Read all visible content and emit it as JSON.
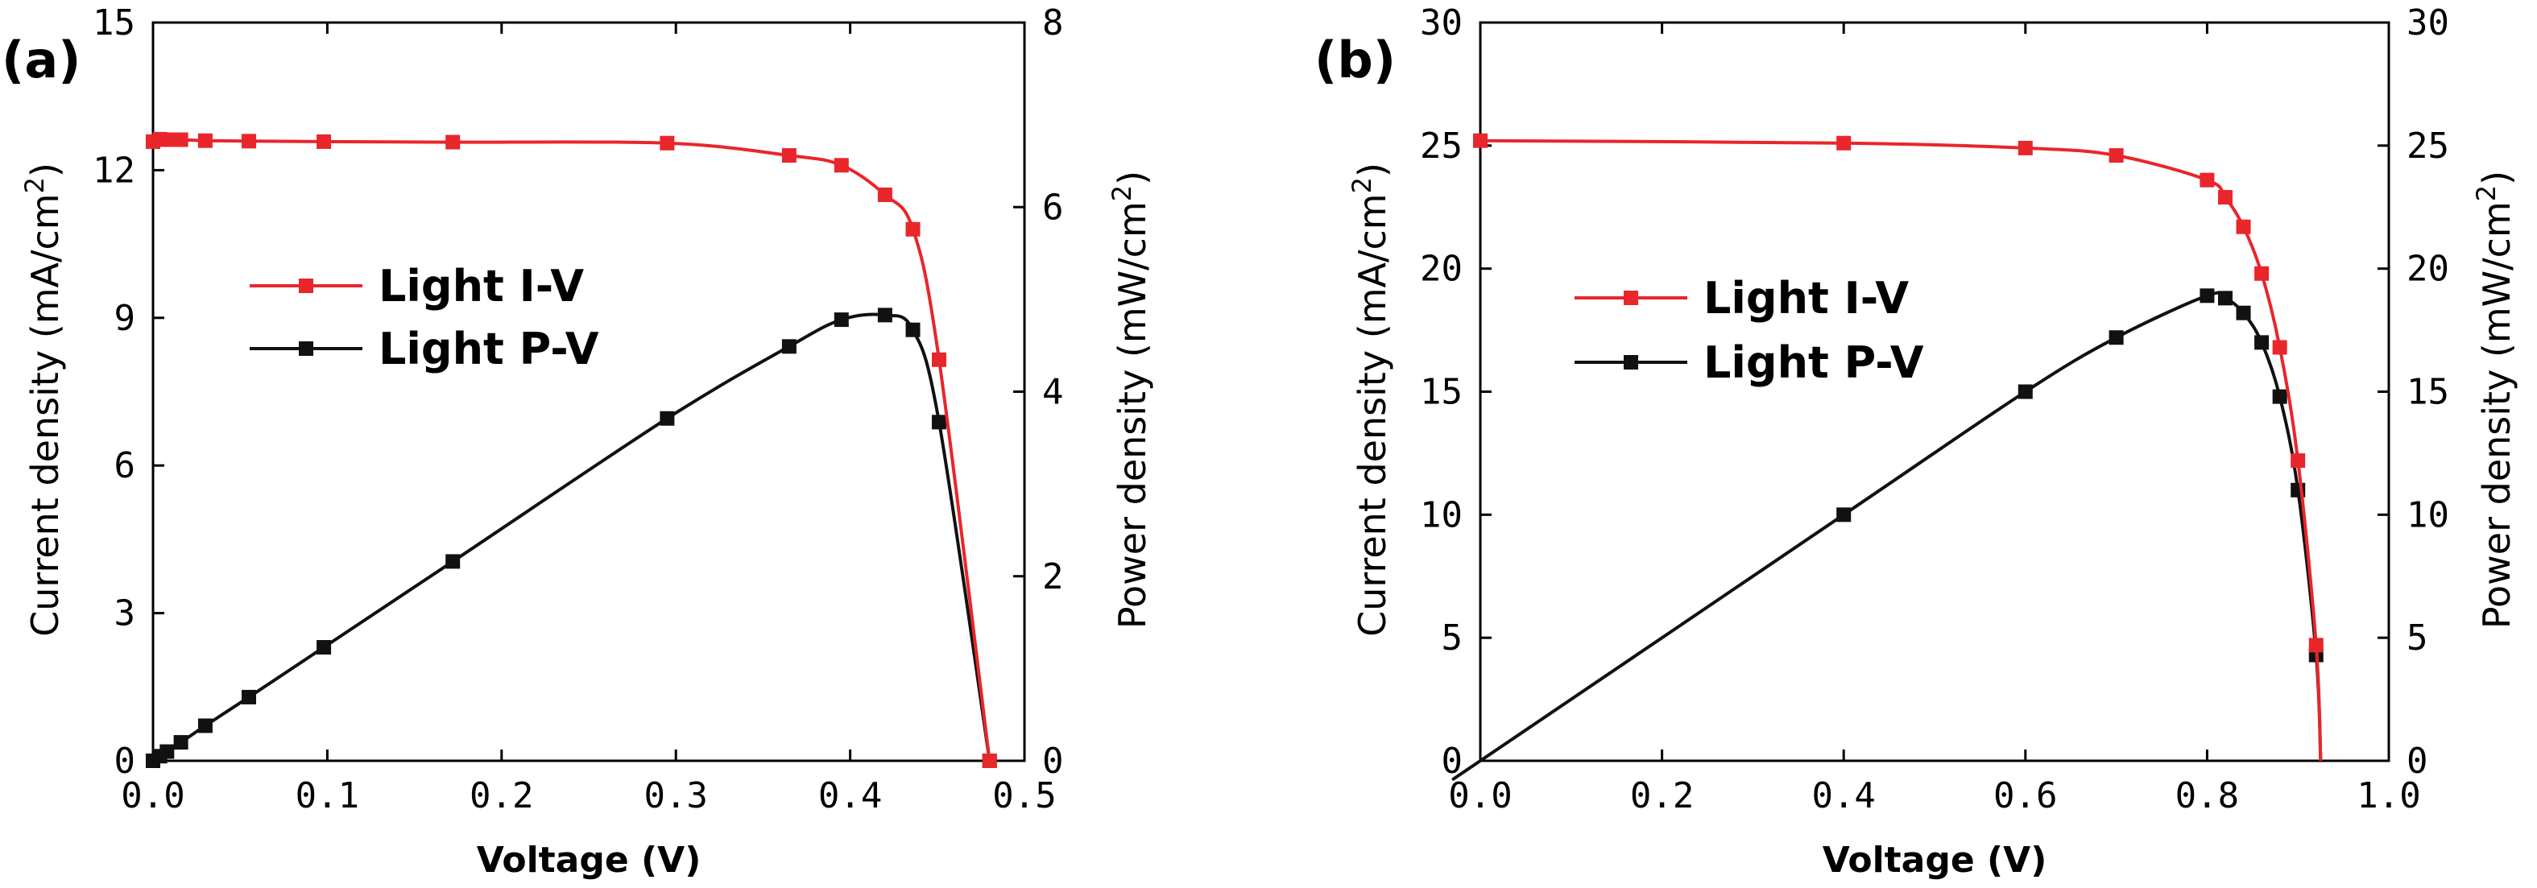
{
  "colors": {
    "iv": "#e8262b",
    "pv": "#111111",
    "axis": "#000000"
  },
  "chart_data": [
    {
      "type": "line",
      "panel_label": "(a)",
      "xlabel": "Voltage (V)",
      "ylabel_left": "Current density (mA/cm",
      "ylabel_right": "Power density (mW/cm",
      "ylabel_sup": "2",
      "ylabel_close": ")",
      "xlim": [
        0,
        0.5
      ],
      "ylim_left": [
        0,
        15
      ],
      "ylim_right": [
        0,
        8
      ],
      "xticks": [
        "0.0",
        "0.1",
        "0.2",
        "0.3",
        "0.4",
        "0.5"
      ],
      "yticks_left": [
        "0",
        "3",
        "6",
        "9",
        "12",
        "15"
      ],
      "yticks_right": [
        "0",
        "2",
        "4",
        "6",
        "8"
      ],
      "legend_position": "center-left",
      "series": [
        {
          "name": "Light I-V",
          "axis": "left",
          "color": "iv",
          "x": [
            0.0,
            0.004,
            0.008,
            0.016,
            0.03,
            0.055,
            0.098,
            0.172,
            0.295,
            0.365,
            0.395,
            0.42,
            0.436,
            0.451,
            0.48
          ],
          "y": [
            12.58,
            12.63,
            12.62,
            12.62,
            12.6,
            12.59,
            12.58,
            12.57,
            12.55,
            12.3,
            12.1,
            11.5,
            10.8,
            8.15,
            0.0
          ]
        },
        {
          "name": "Light P-V",
          "axis": "right",
          "color": "pv",
          "x": [
            0.0,
            0.004,
            0.008,
            0.016,
            0.03,
            0.055,
            0.098,
            0.172,
            0.295,
            0.365,
            0.395,
            0.42,
            0.436,
            0.451,
            0.48
          ],
          "y": [
            0.0,
            0.05,
            0.1,
            0.2,
            0.38,
            0.69,
            1.23,
            2.16,
            3.71,
            4.49,
            4.78,
            4.83,
            4.67,
            3.67,
            0.0
          ]
        }
      ]
    },
    {
      "type": "line",
      "panel_label": "(b)",
      "xlabel": "Voltage (V)",
      "ylabel_left": "Current density (mA/cm",
      "ylabel_right": "Power density (mW/cm",
      "ylabel_sup": "2",
      "ylabel_close": ")",
      "xlim": [
        0,
        1.0
      ],
      "ylim_left": [
        0,
        30
      ],
      "ylim_right": [
        0,
        30
      ],
      "xticks": [
        "0.0",
        "0.2",
        "0.4",
        "0.6",
        "0.8",
        "1.0"
      ],
      "yticks_left": [
        "0",
        "5",
        "10",
        "15",
        "20",
        "25",
        "30"
      ],
      "yticks_right": [
        "0",
        "5",
        "10",
        "15",
        "20",
        "25",
        "30"
      ],
      "legend_position": "center-left",
      "series": [
        {
          "name": "Light I-V",
          "axis": "left",
          "color": "iv",
          "x": [
            0.0,
            0.4,
            0.6,
            0.7,
            0.8,
            0.82,
            0.84,
            0.86,
            0.88,
            0.9,
            0.92
          ],
          "y": [
            25.2,
            25.1,
            24.9,
            24.6,
            23.6,
            22.9,
            21.7,
            19.8,
            16.8,
            12.2,
            4.7
          ],
          "end": [
            0.925,
            0.0
          ]
        },
        {
          "name": "Light P-V",
          "axis": "right",
          "color": "pv",
          "x": [
            0.0,
            0.4,
            0.6,
            0.7,
            0.8,
            0.82,
            0.84,
            0.86,
            0.88,
            0.9,
            0.92
          ],
          "y": [
            0.0,
            10.0,
            15.0,
            17.2,
            18.9,
            18.8,
            18.2,
            17.0,
            14.8,
            11.0,
            4.3
          ],
          "start": [
            0.0,
            0.0
          ],
          "end": [
            0.925,
            0.0
          ],
          "hide_first_marker": true
        }
      ]
    }
  ]
}
